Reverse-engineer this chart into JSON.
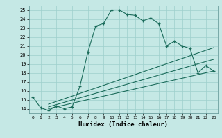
{
  "xlabel": "Humidex (Indice chaleur)",
  "bg_color": "#c5e8e5",
  "grid_color": "#9ecfcc",
  "line_color": "#1a6b5a",
  "xlim": [
    -0.5,
    23.5
  ],
  "ylim": [
    13.5,
    25.5
  ],
  "xticks": [
    0,
    1,
    2,
    3,
    4,
    5,
    6,
    7,
    8,
    9,
    10,
    11,
    12,
    13,
    14,
    15,
    16,
    17,
    18,
    19,
    20,
    21,
    22,
    23
  ],
  "yticks": [
    14,
    15,
    16,
    17,
    18,
    19,
    20,
    21,
    22,
    23,
    24,
    25
  ],
  "curve_x": [
    0,
    1,
    2,
    3,
    4,
    5,
    6,
    7,
    8,
    9,
    10,
    11,
    12,
    13,
    14,
    15,
    16,
    17,
    18,
    19,
    20,
    21,
    22,
    23
  ],
  "curve_y": [
    15.3,
    14.1,
    13.8,
    14.3,
    14.0,
    14.2,
    16.5,
    20.3,
    23.2,
    23.5,
    25.0,
    25.0,
    24.5,
    24.4,
    23.8,
    24.1,
    23.5,
    21.0,
    21.5,
    21.0,
    20.7,
    18.0,
    18.8,
    18.2
  ],
  "line1_x": [
    2,
    23
  ],
  "line1_y": [
    14.0,
    18.2
  ],
  "line2_x": [
    2,
    23
  ],
  "line2_y": [
    14.2,
    19.5
  ],
  "line3_x": [
    2,
    23
  ],
  "line3_y": [
    14.5,
    20.8
  ]
}
